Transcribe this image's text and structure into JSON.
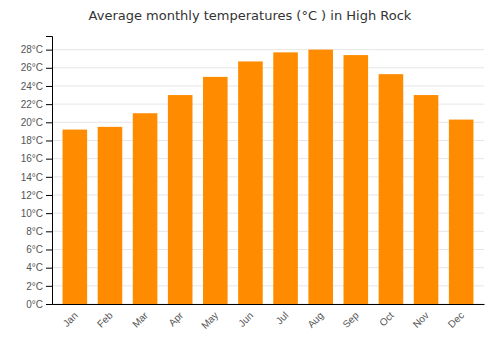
{
  "chart_data": {
    "type": "bar",
    "title": "Average monthly temperatures (°C ) in High Rock",
    "categories": [
      "Jan",
      "Feb",
      "Mar",
      "Apr",
      "May",
      "Jun",
      "Jul",
      "Aug",
      "Sep",
      "Oct",
      "Nov",
      "Dec"
    ],
    "values": [
      19.2,
      19.5,
      21.0,
      23.0,
      25.0,
      26.7,
      27.7,
      28.0,
      27.4,
      25.3,
      23.0,
      20.3
    ],
    "color": "#FF8C00",
    "ylim": [
      0,
      29.5
    ],
    "yticks": [
      {
        "value": 0,
        "label": "0°C"
      },
      {
        "value": 2,
        "label": "2°C"
      },
      {
        "value": 4,
        "label": "4°C"
      },
      {
        "value": 6,
        "label": "6°C"
      },
      {
        "value": 8,
        "label": "8°C"
      },
      {
        "value": 10,
        "label": "10°C"
      },
      {
        "value": 12,
        "label": "12°C"
      },
      {
        "value": 14,
        "label": "14°C"
      },
      {
        "value": 16,
        "label": "16°C"
      },
      {
        "value": 18,
        "label": "18°C"
      },
      {
        "value": 20,
        "label": "20°C"
      },
      {
        "value": 22,
        "label": "22°C"
      },
      {
        "value": 24,
        "label": "24°C"
      },
      {
        "value": 26,
        "label": "26°C"
      },
      {
        "value": 28,
        "label": "28°C"
      }
    ],
    "grid": true
  }
}
